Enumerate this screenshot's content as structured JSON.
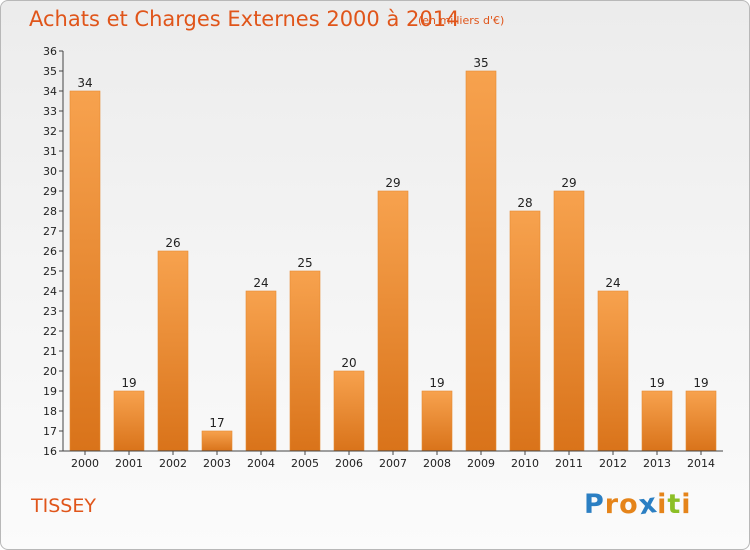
{
  "chart_data": {
    "type": "bar",
    "title": "Achats et Charges Externes 2000 à 2014",
    "subtitle": "(en milliers d'€)",
    "categories": [
      "2000",
      "2001",
      "2002",
      "2003",
      "2004",
      "2005",
      "2006",
      "2007",
      "2008",
      "2009",
      "2010",
      "2011",
      "2012",
      "2013",
      "2014"
    ],
    "values": [
      34,
      19,
      26,
      17,
      24,
      25,
      20,
      29,
      19,
      35,
      28,
      29,
      24,
      19,
      19
    ],
    "ylim": [
      16,
      36
    ],
    "yticks": [
      16,
      17,
      18,
      19,
      20,
      21,
      22,
      23,
      24,
      25,
      26,
      27,
      28,
      29,
      30,
      31,
      32,
      33,
      34,
      35,
      36
    ],
    "grid": false,
    "colors": {
      "bar_light": "#f7a24e",
      "bar_dark": "#d9731a",
      "text_accent": "#e0551a"
    }
  },
  "footer": {
    "town": "TISSEY",
    "logo": {
      "text": "Proxiti",
      "letters": [
        {
          "ch": "P",
          "color": "#2b7fc3"
        },
        {
          "ch": "r",
          "color": "#e5841a"
        },
        {
          "ch": "o",
          "color": "#e5841a"
        },
        {
          "ch": "x",
          "color": "#2b7fc3"
        },
        {
          "ch": "i",
          "color": "#e5841a"
        },
        {
          "ch": "t",
          "color": "#8cbf26"
        },
        {
          "ch": "i",
          "color": "#e5841a"
        }
      ]
    }
  }
}
